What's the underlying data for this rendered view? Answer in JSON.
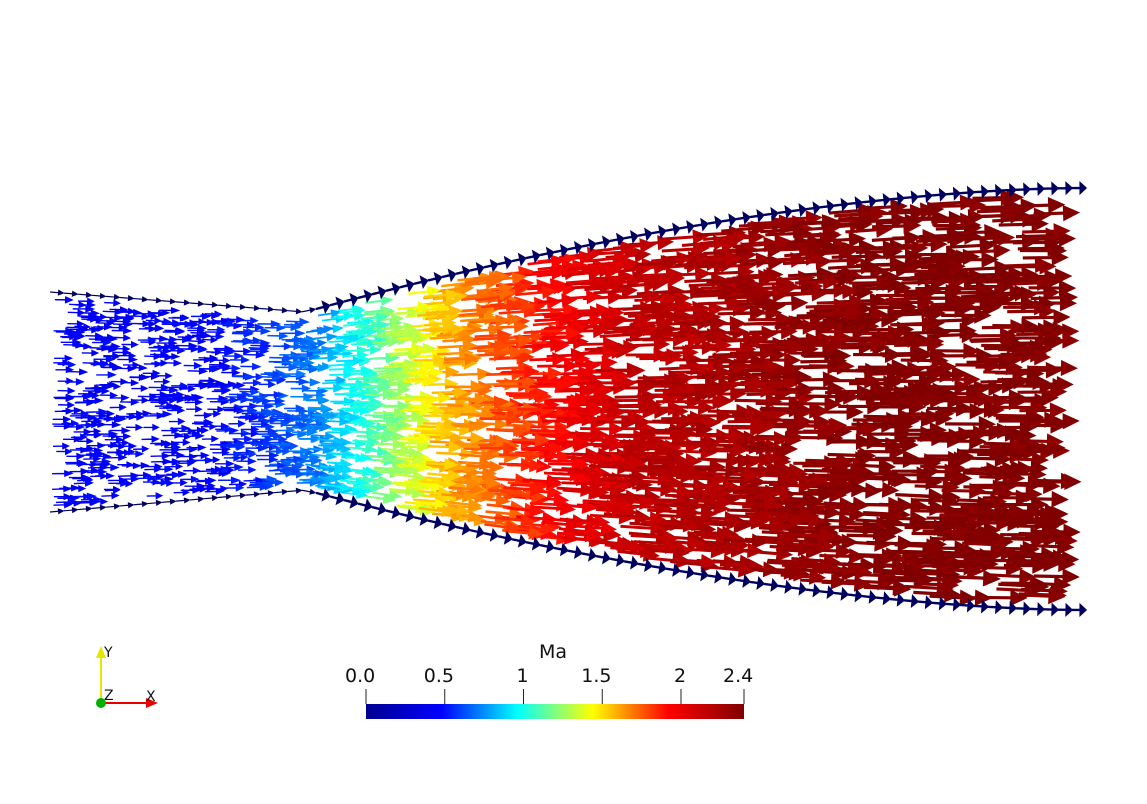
{
  "colorbar": {
    "title": "Ma",
    "min": 0.0,
    "max": 2.4,
    "ticks": [
      {
        "value": 0.0,
        "label": "0.0"
      },
      {
        "value": 0.5,
        "label": "0.5"
      },
      {
        "value": 1.0,
        "label": "1"
      },
      {
        "value": 1.5,
        "label": "1.5"
      },
      {
        "value": 2.0,
        "label": "2"
      },
      {
        "value": 2.4,
        "label": "2.4"
      }
    ],
    "colormap": [
      "#00008f",
      "#0000ff",
      "#00ffff",
      "#ffff00",
      "#ff0000",
      "#800000"
    ]
  },
  "axes_triad": {
    "y_label": "Y",
    "z_label": "Z",
    "x_label": "X",
    "y_color": "#e6e600",
    "x_color": "#e60000",
    "z_color": "#00b000"
  },
  "field": {
    "quantity": "Ma",
    "wall_color": "#000060"
  }
}
